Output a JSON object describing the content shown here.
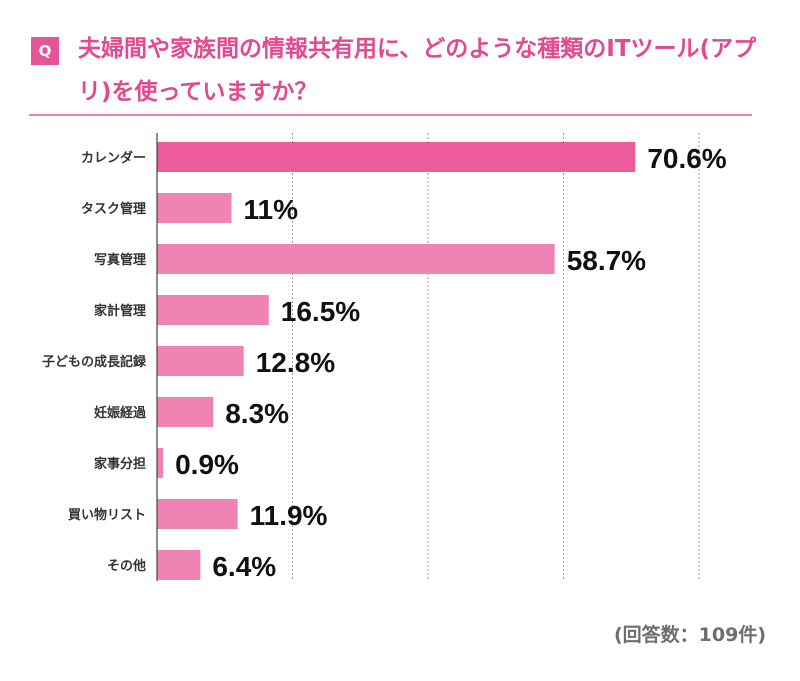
{
  "question": {
    "badge": "Q",
    "title": "夫婦間や家族間の情報共有用に、どのような種類のITツール(アプリ)を使っていますか？"
  },
  "colors": {
    "accent": "#e6559a",
    "bar_top": "#ec5b9c",
    "bar": "#f083b3"
  },
  "chart_data": {
    "type": "bar",
    "orientation": "horizontal",
    "categories": [
      "カレンダー",
      "タスク管理",
      "写真管理",
      "家計管理",
      "子どもの成長記録",
      "妊娠経過",
      "家事分担",
      "買い物リスト",
      "その他"
    ],
    "values": [
      70.6,
      11,
      58.7,
      16.5,
      12.8,
      8.3,
      0.9,
      11.9,
      6.4
    ],
    "data_labels": [
      "70.6%",
      "11%",
      "58.7%",
      "16.5%",
      "12.8%",
      "8.3%",
      "0.9%",
      "11.9%",
      "6.4%"
    ],
    "xlim": [
      0,
      80
    ],
    "gridlines": [
      20,
      40,
      60,
      80
    ],
    "grid": true,
    "title": "",
    "xlabel": "",
    "ylabel": ""
  },
  "footnote": "(回答数：109件)"
}
